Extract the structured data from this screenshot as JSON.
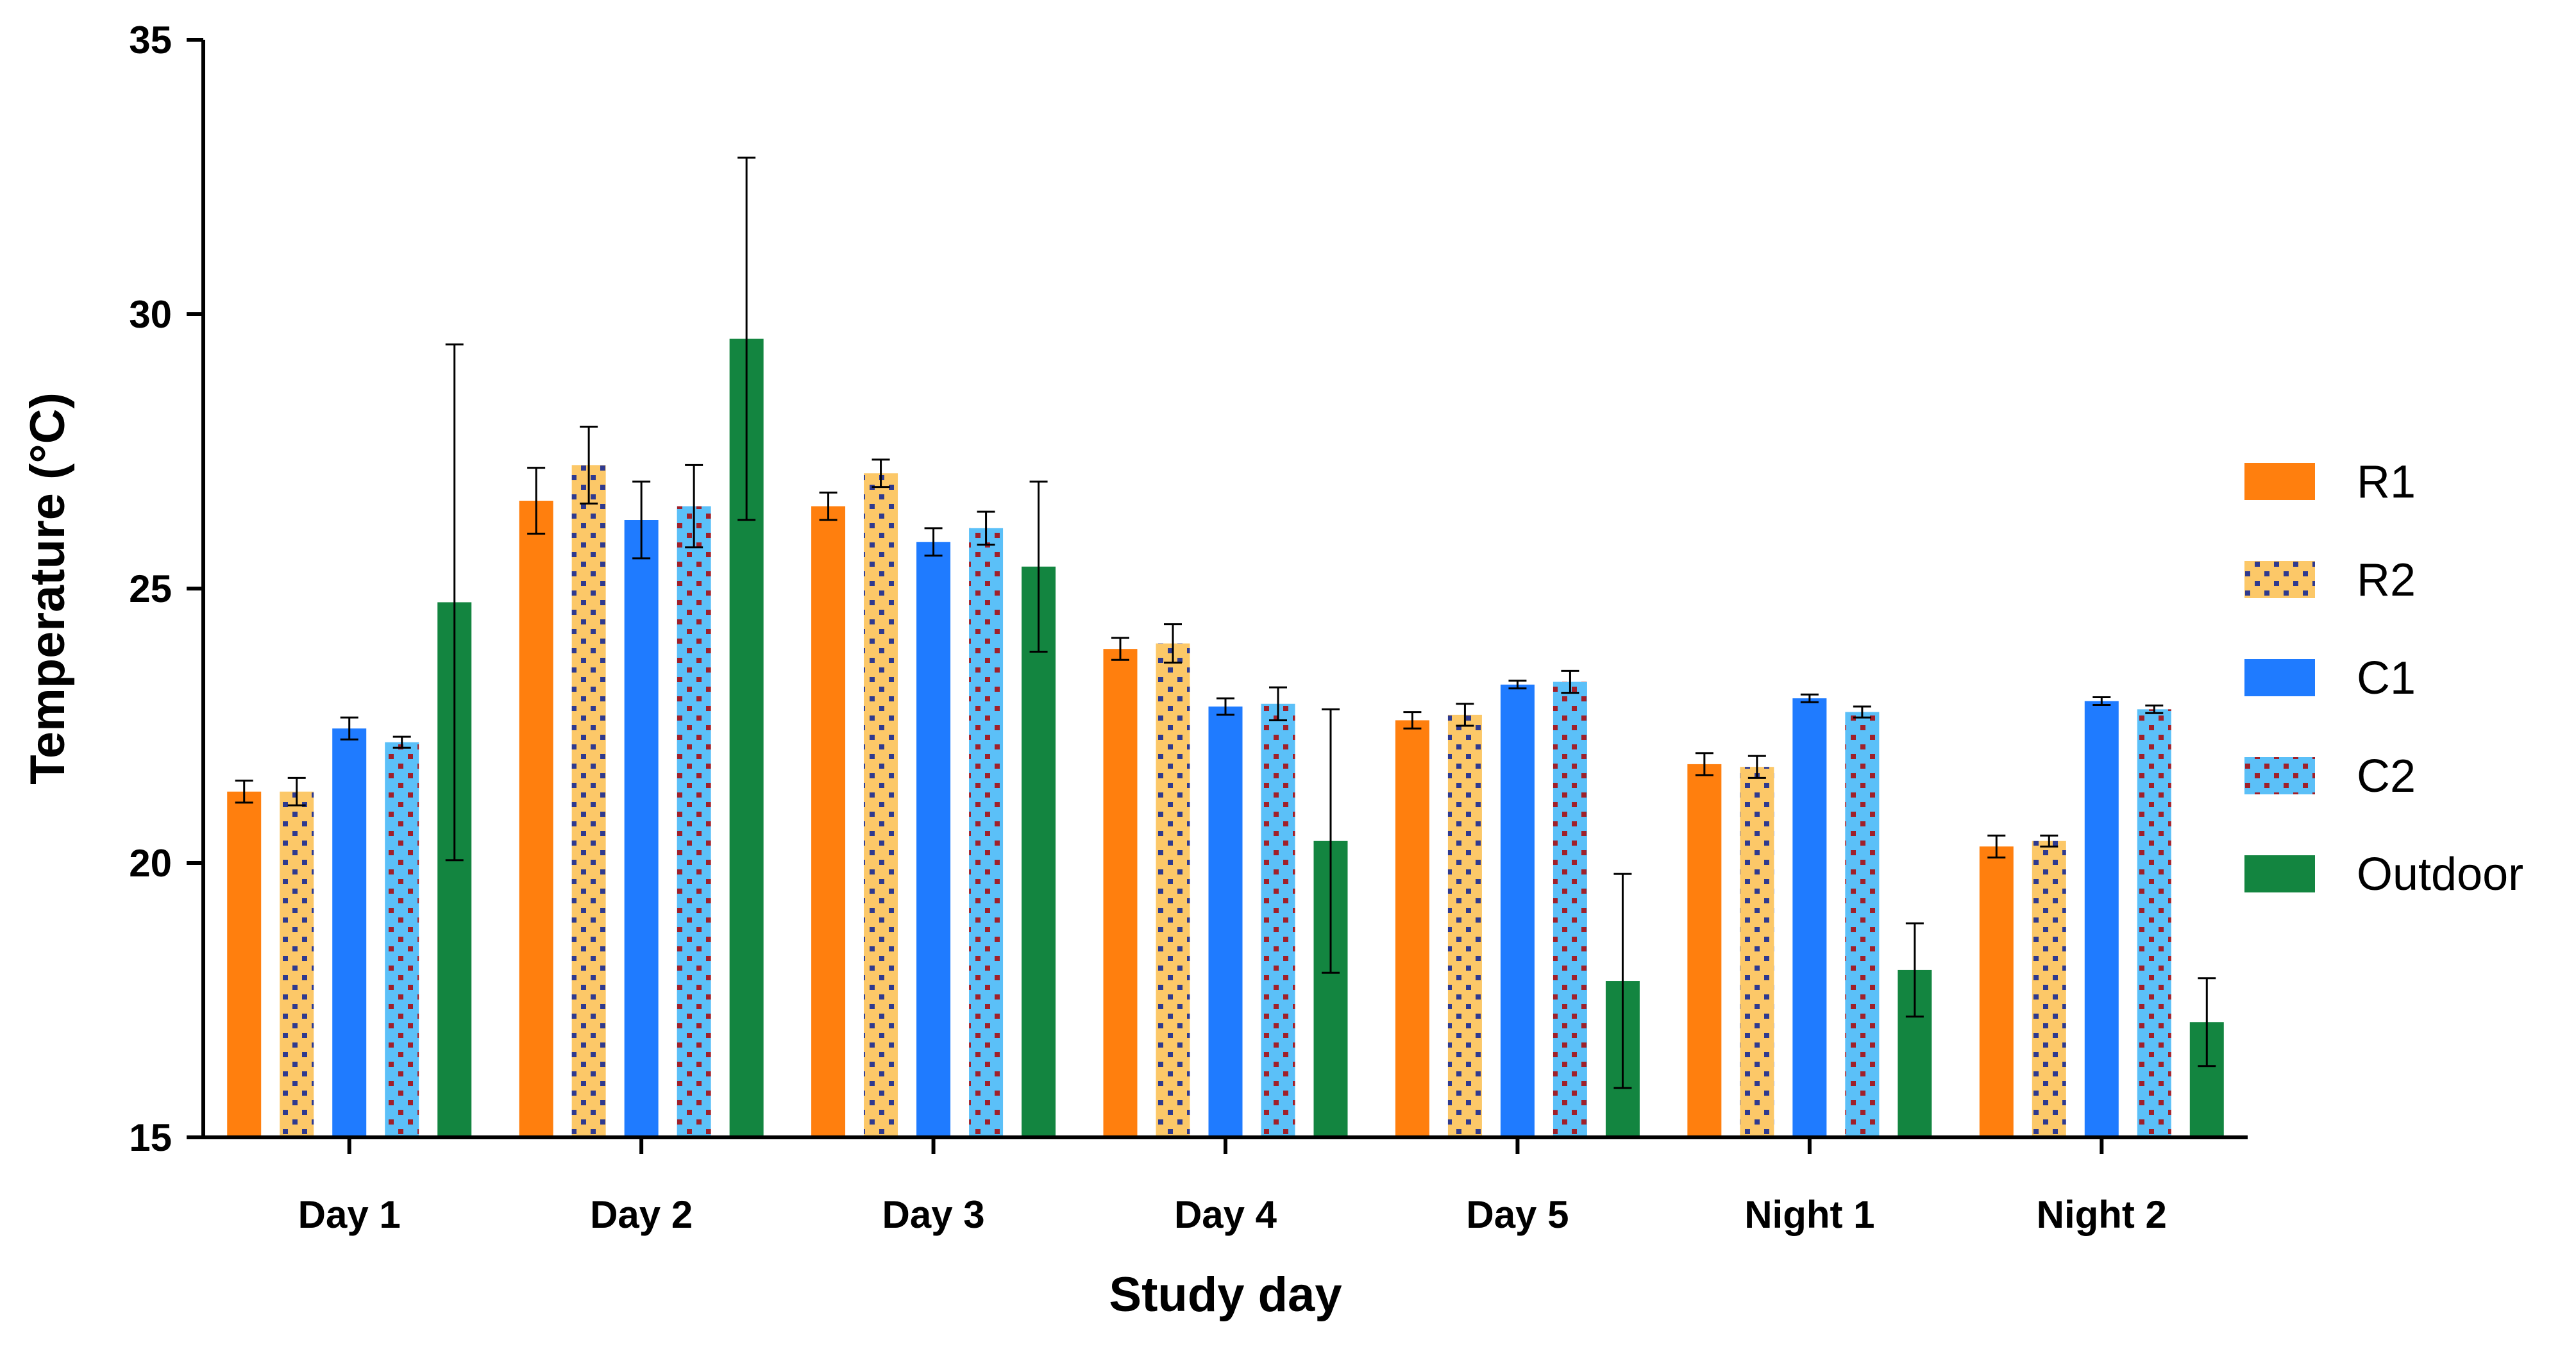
{
  "chart_data": {
    "type": "bar",
    "title": "",
    "xlabel": "Study day",
    "ylabel": "Temperature (°C)",
    "ylim": [
      15,
      35
    ],
    "yticks": [
      "15",
      "20",
      "25",
      "30",
      "35"
    ],
    "categories": [
      "Day 1",
      "Day 2",
      "Day 3",
      "Day 4",
      "Day 5",
      "Night 1",
      "Night 2"
    ],
    "legend_position": "right",
    "series": [
      {
        "name": "R1",
        "color": "#FF7F0E",
        "pattern": "solid",
        "values": [
          21.3,
          26.6,
          26.5,
          23.9,
          22.6,
          21.8,
          20.3
        ],
        "errors": [
          0.2,
          0.6,
          0.25,
          0.2,
          0.15,
          0.2,
          0.2
        ]
      },
      {
        "name": "R2",
        "color": "#FCC868",
        "pattern": "dots",
        "dot_color": "#2F3A8F",
        "values": [
          21.3,
          27.25,
          27.1,
          24.0,
          22.7,
          21.75,
          20.4
        ],
        "errors": [
          0.25,
          0.7,
          0.25,
          0.35,
          0.2,
          0.2,
          0.1
        ]
      },
      {
        "name": "C1",
        "color": "#1F7BFF",
        "pattern": "solid",
        "values": [
          22.45,
          26.25,
          25.85,
          22.85,
          23.25,
          23.0,
          22.95
        ],
        "errors": [
          0.2,
          0.7,
          0.25,
          0.15,
          0.07,
          0.07,
          0.07
        ]
      },
      {
        "name": "C2",
        "color": "#5BC0F8",
        "pattern": "dots",
        "dot_color": "#A0202A",
        "values": [
          22.2,
          26.5,
          26.1,
          22.9,
          23.3,
          22.75,
          22.8
        ],
        "errors": [
          0.1,
          0.75,
          0.3,
          0.3,
          0.2,
          0.1,
          0.07
        ]
      },
      {
        "name": "Outdoor",
        "color": "#138540",
        "pattern": "solid",
        "values": [
          24.75,
          29.55,
          25.4,
          20.4,
          17.85,
          18.05,
          17.1
        ],
        "errors": [
          4.7,
          3.3,
          1.55,
          2.4,
          1.95,
          0.85,
          0.8
        ]
      }
    ]
  }
}
